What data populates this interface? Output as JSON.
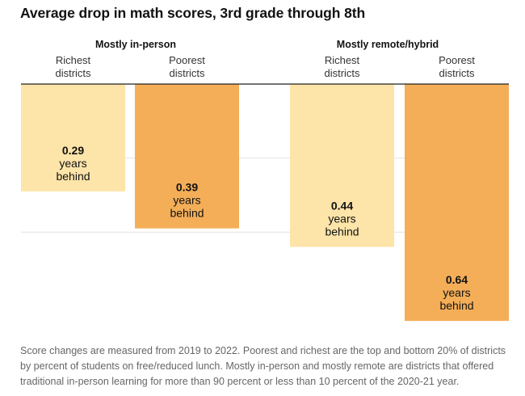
{
  "title": "Average drop in math scores, 3rd grade through 8th",
  "note": "Score changes are measured from 2019 to 2022. Poorest and richest are the top and bottom 20% of districts by percent of students on free/reduced lunch. Mostly in-person and mostly remote are districts that offered traditional in-person learning for more than 90 percent or less than 10 percent of the 2020-21 year.",
  "colors": {
    "richest": "#fde4a9",
    "poorest": "#f4ae58",
    "grid": "#e2e2e2",
    "axis": "#222222"
  },
  "chart_data": {
    "type": "bar",
    "orientation": "vertical-downward",
    "title": "Average drop in math scores, 3rd grade through 8th",
    "unit": "years behind",
    "ylim": [
      0,
      0.7
    ],
    "groups": [
      {
        "label": "Mostly in-person",
        "bars": [
          {
            "category": [
              "Richest",
              "districts"
            ],
            "value": 0.29,
            "value_label": "0.29",
            "color_key": "richest"
          },
          {
            "category": [
              "Poorest",
              "districts"
            ],
            "value": 0.39,
            "value_label": "0.39",
            "color_key": "poorest"
          }
        ]
      },
      {
        "label": "Mostly remote/hybrid",
        "bars": [
          {
            "category": [
              "Richest",
              "districts"
            ],
            "value": 0.44,
            "value_label": "0.44",
            "color_key": "richest"
          },
          {
            "category": [
              "Poorest",
              "districts"
            ],
            "value": 0.64,
            "value_label": "0.64",
            "color_key": "poorest"
          }
        ]
      }
    ],
    "value_text": [
      "years",
      "behind"
    ],
    "grid": true,
    "legend": "none"
  }
}
